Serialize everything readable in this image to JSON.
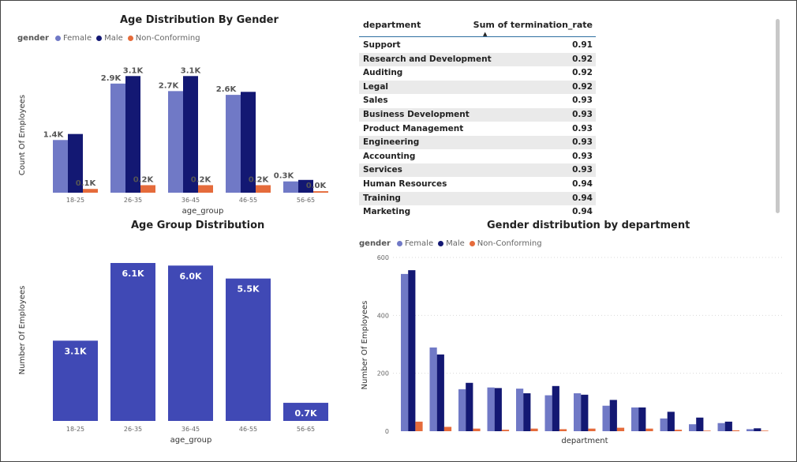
{
  "colors": {
    "female": "#7079c6",
    "male": "#131873",
    "non_conforming": "#e56b3b",
    "single": "#4049b5"
  },
  "chart_data": [
    {
      "id": "age_gender",
      "type": "bar",
      "title": "Age Distribution By Gender",
      "legend_title": "gender",
      "xlabel": "age_group",
      "ylabel": "Count Of Employees",
      "categories": [
        "18-25",
        "26-35",
        "36-45",
        "46-55",
        "56-65"
      ],
      "series": [
        {
          "name": "Female",
          "values": [
            1400,
            2900,
            2700,
            2600,
            300
          ],
          "labels": [
            "1.4K",
            "2.9K",
            "2.7K",
            "2.6K",
            "0.3K"
          ]
        },
        {
          "name": "Male",
          "values": [
            1560,
            3100,
            3100,
            2680,
            340
          ],
          "labels": [
            "",
            "3.1K",
            "3.1K",
            "",
            ""
          ]
        },
        {
          "name": "Non-Conforming",
          "values": [
            100,
            200,
            200,
            200,
            40
          ],
          "labels": [
            "0.1K",
            "0.2K",
            "0.2K",
            "0.2K",
            "0.0K"
          ]
        }
      ],
      "ylim": [
        0,
        3400
      ],
      "grid": false,
      "legend_position": "top-left"
    },
    {
      "id": "age_group",
      "type": "bar",
      "title": "Age Group Distribution",
      "xlabel": "age_group",
      "ylabel": "Number Of Employees",
      "categories": [
        "18-25",
        "26-35",
        "36-45",
        "46-55",
        "56-65"
      ],
      "values": [
        3100,
        6100,
        6000,
        5500,
        700
      ],
      "labels": [
        "3.1K",
        "6.1K",
        "6.0K",
        "5.5K",
        "0.7K"
      ],
      "ylim": [
        0,
        6100
      ],
      "grid": false
    },
    {
      "id": "termination_table",
      "type": "table",
      "columns": [
        "department",
        "Sum of termination_rate"
      ],
      "rows": [
        [
          "Support",
          "0.91"
        ],
        [
          "Research and Development",
          "0.92"
        ],
        [
          "Auditing",
          "0.92"
        ],
        [
          "Legal",
          "0.92"
        ],
        [
          "Sales",
          "0.93"
        ],
        [
          "Business Development",
          "0.93"
        ],
        [
          "Product Management",
          "0.93"
        ],
        [
          "Engineering",
          "0.93"
        ],
        [
          "Accounting",
          "0.93"
        ],
        [
          "Services",
          "0.93"
        ],
        [
          "Human Resources",
          "0.94"
        ],
        [
          "Training",
          "0.94"
        ],
        [
          "Marketing",
          "0.94"
        ]
      ]
    },
    {
      "id": "gender_dept",
      "type": "bar",
      "title": "Gender distribution by department",
      "legend_title": "gender",
      "xlabel": "department",
      "ylabel": "Number Of Employees",
      "yticks": [
        0,
        200,
        400,
        600
      ],
      "ylim": [
        0,
        600
      ],
      "grid": true,
      "legend_position": "top-left",
      "series": [
        {
          "name": "Female",
          "values": [
            543,
            289,
            145,
            151,
            147,
            124,
            131,
            88,
            82,
            44,
            24,
            28,
            7
          ]
        },
        {
          "name": "Male",
          "values": [
            556,
            265,
            167,
            149,
            131,
            156,
            126,
            108,
            82,
            67,
            47,
            33,
            10
          ]
        },
        {
          "name": "Non-Conforming",
          "values": [
            33,
            15,
            9,
            5,
            9,
            7,
            9,
            12,
            9,
            5,
            2,
            3,
            2
          ]
        }
      ]
    }
  ]
}
